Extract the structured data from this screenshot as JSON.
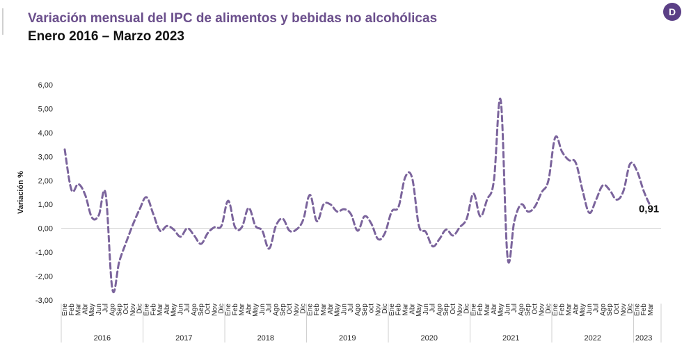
{
  "header": {
    "title": "Variación mensual del IPC de alimentos y bebidas no alcohólicas",
    "subtitle": "Enero 2016 – Marzo 2023",
    "logo_letter": "D"
  },
  "colors": {
    "line": "#7b649c",
    "title": "#6b4f8c",
    "logo": "#5b3f86",
    "grid": "#cfcfcf"
  },
  "chart_data": {
    "type": "line",
    "ylabel": "Variación %",
    "ylim": [
      -3,
      6
    ],
    "yticks": [
      "6,00",
      "5,00",
      "4,00",
      "3,00",
      "2,00",
      "1,00",
      "0,00",
      "-1,00",
      "-2,00",
      "-3,00"
    ],
    "line_style": "dashed",
    "end_label": "0,91",
    "years": [
      {
        "label": "2016",
        "months": [
          "Ene",
          "Feb",
          "Mar",
          "Abr",
          "May",
          "Jun",
          "Jul",
          "Ago",
          "Sep",
          "Oct",
          "Nov",
          "Dic"
        ]
      },
      {
        "label": "2017",
        "months": [
          "Ene",
          "Feb",
          "Mar",
          "Abr",
          "May",
          "Jun",
          "Jul",
          "Ago",
          "Sep",
          "Oct",
          "Nov",
          "Dic"
        ]
      },
      {
        "label": "2018",
        "months": [
          "Ene",
          "Feb",
          "Mar",
          "Abr",
          "May",
          "Jun",
          "Jul",
          "Ago",
          "Sep",
          "Oct",
          "Nov",
          "Dic"
        ]
      },
      {
        "label": "2019",
        "months": [
          "Ene",
          "Feb",
          "Mar",
          "Abr",
          "May",
          "Jun",
          "Jul",
          "Ago",
          "Sep",
          "oct",
          "Nov",
          "Dic"
        ]
      },
      {
        "label": "2020",
        "months": [
          "Ene",
          "Feb",
          "Mar",
          "Abr",
          "May",
          "Jun",
          "Jul",
          "Ago",
          "Sep",
          "Oct",
          "Nov",
          "Dic"
        ]
      },
      {
        "label": "2021",
        "months": [
          "Ene",
          "Feb",
          "Mar",
          "Abr",
          "May",
          "Jun",
          "Jul",
          "Ago",
          "Sep",
          "Oct",
          "Nov",
          "Dic"
        ]
      },
      {
        "label": "2022",
        "months": [
          "Ene",
          "Feb",
          "Mar",
          "Abr",
          "May",
          "Jun",
          "Jul",
          "Ago",
          "Sep",
          "Oct",
          "Nov",
          "Dic"
        ]
      },
      {
        "label": "2023",
        "months": [
          "Ene",
          "Feb",
          "Mar"
        ]
      }
    ],
    "series": [
      {
        "values": [
          3.3,
          1.6,
          1.85,
          1.4,
          0.45,
          0.55,
          1.45,
          -2.55,
          -1.4,
          -0.6,
          0.15,
          0.8,
          1.3,
          0.6,
          -0.1,
          0.1,
          -0.05,
          -0.35,
          0.0,
          -0.3,
          -0.65,
          -0.2,
          0.05,
          0.1,
          1.15,
          0.05,
          0.05,
          0.85,
          0.1,
          -0.1,
          -0.85,
          0.1,
          0.4,
          -0.1,
          -0.05,
          0.35,
          1.4,
          0.3,
          1.0,
          1.0,
          0.7,
          0.8,
          0.6,
          -0.1,
          0.5,
          0.2,
          -0.45,
          -0.2,
          0.7,
          0.9,
          2.15,
          2.1,
          0.1,
          -0.15,
          -0.75,
          -0.45,
          -0.05,
          -0.3,
          0.05,
          0.4,
          1.45,
          0.5,
          1.2,
          2.0,
          5.35,
          -1.2,
          0.3,
          1.0,
          0.7,
          0.9,
          1.5,
          2.0,
          3.8,
          3.2,
          2.85,
          2.75,
          1.6,
          0.65,
          1.2,
          1.8,
          1.6,
          1.2,
          1.55,
          2.7,
          2.4,
          1.55,
          0.91
        ]
      }
    ]
  }
}
